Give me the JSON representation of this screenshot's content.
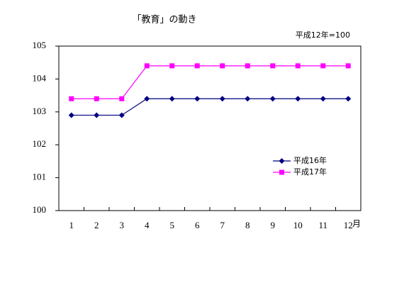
{
  "chart_data": {
    "type": "line",
    "title": "「教育」の動き",
    "subtitle": "平成12年=100",
    "xlabel": "月",
    "categories": [
      "1",
      "2",
      "3",
      "4",
      "5",
      "6",
      "7",
      "8",
      "9",
      "10",
      "11",
      "12"
    ],
    "series": [
      {
        "name": "平成16年",
        "color": "#000080",
        "marker": "diamond",
        "values": [
          102.9,
          102.9,
          102.9,
          103.4,
          103.4,
          103.4,
          103.4,
          103.4,
          103.4,
          103.4,
          103.4,
          103.4
        ]
      },
      {
        "name": "平成17年",
        "color": "#ff00ff",
        "marker": "square",
        "values": [
          103.4,
          103.4,
          103.4,
          104.4,
          104.4,
          104.4,
          104.4,
          104.4,
          104.4,
          104.4,
          104.4,
          104.4
        ]
      }
    ],
    "ylim": [
      100,
      105
    ],
    "yticks": [
      100,
      101,
      102,
      103,
      104,
      105
    ],
    "grid": false
  }
}
